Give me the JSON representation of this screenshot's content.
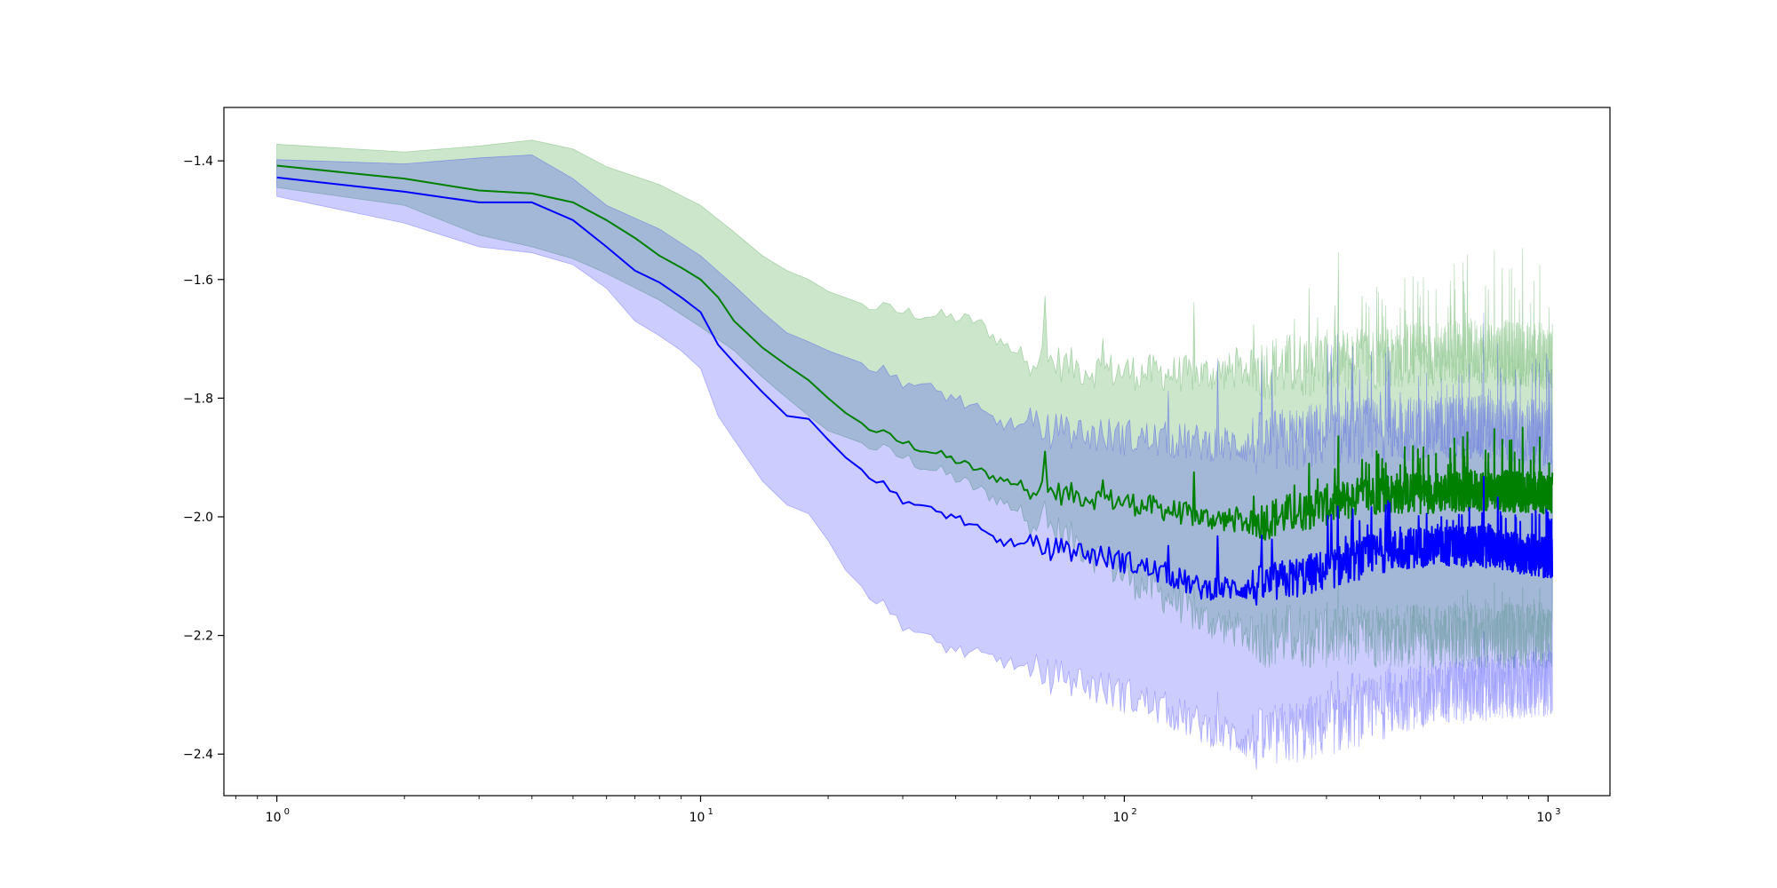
{
  "chart_data": {
    "type": "line",
    "title": "",
    "xlabel": "",
    "ylabel": "",
    "xscale": "log",
    "xlim": [
      0.75,
      1400
    ],
    "ylim": [
      -2.47,
      -1.31
    ],
    "grid": false,
    "legend": "none",
    "x_tick_labels": [
      "10",
      "10",
      "10",
      "10"
    ],
    "x_tick_exponents": [
      "0",
      "1",
      "2",
      "3"
    ],
    "x_tick_values": [
      1,
      10,
      100,
      1000
    ],
    "y_tick_labels": [
      "−1.4",
      "−1.6",
      "−1.8",
      "−2.0",
      "−2.2",
      "−2.4"
    ],
    "y_tick_values": [
      -1.4,
      -1.6,
      -1.8,
      -2.0,
      -2.2,
      -2.4
    ],
    "series": [
      {
        "color": "#008000",
        "band_color": "#008000",
        "band_alpha": 0.2,
        "keypoints": [
          [
            1,
            -1.408
          ],
          [
            2,
            -1.43
          ],
          [
            3,
            -1.45
          ],
          [
            4,
            -1.455
          ],
          [
            5,
            -1.47
          ],
          [
            6,
            -1.5
          ],
          [
            7,
            -1.53
          ],
          [
            8,
            -1.56
          ],
          [
            9,
            -1.58
          ],
          [
            10,
            -1.6
          ],
          [
            11,
            -1.63
          ],
          [
            12,
            -1.67
          ],
          [
            14,
            -1.715
          ],
          [
            16,
            -1.745
          ],
          [
            18,
            -1.77
          ],
          [
            20,
            -1.8
          ],
          [
            22,
            -1.825
          ],
          [
            25,
            -1.85
          ],
          [
            30,
            -1.875
          ],
          [
            35,
            -1.89
          ],
          [
            40,
            -1.905
          ],
          [
            50,
            -1.935
          ],
          [
            60,
            -1.95
          ],
          [
            70,
            -1.96
          ],
          [
            80,
            -1.965
          ],
          [
            100,
            -1.975
          ],
          [
            130,
            -1.99
          ],
          [
            150,
            -2.0
          ],
          [
            200,
            -2.01
          ],
          [
            300,
            -1.98
          ],
          [
            400,
            -1.96
          ],
          [
            500,
            -1.96
          ],
          [
            700,
            -1.955
          ],
          [
            1024,
            -1.96
          ]
        ],
        "upper_keypoints": [
          [
            1,
            -1.372
          ],
          [
            2,
            -1.385
          ],
          [
            3,
            -1.375
          ],
          [
            4,
            -1.365
          ],
          [
            5,
            -1.38
          ],
          [
            6,
            -1.41
          ],
          [
            8,
            -1.44
          ],
          [
            10,
            -1.475
          ],
          [
            12,
            -1.52
          ],
          [
            14,
            -1.56
          ],
          [
            16,
            -1.585
          ],
          [
            18,
            -1.6
          ],
          [
            20,
            -1.62
          ],
          [
            25,
            -1.645
          ],
          [
            30,
            -1.655
          ],
          [
            35,
            -1.66
          ],
          [
            40,
            -1.665
          ],
          [
            45,
            -1.67
          ],
          [
            50,
            -1.7
          ],
          [
            55,
            -1.72
          ],
          [
            60,
            -1.73
          ],
          [
            80,
            -1.75
          ],
          [
            100,
            -1.755
          ],
          [
            150,
            -1.76
          ],
          [
            200,
            -1.75
          ],
          [
            300,
            -1.74
          ],
          [
            400,
            -1.73
          ],
          [
            500,
            -1.725
          ],
          [
            700,
            -1.72
          ],
          [
            1024,
            -1.73
          ]
        ],
        "lower_keypoints": [
          [
            1,
            -1.445
          ],
          [
            2,
            -1.475
          ],
          [
            3,
            -1.525
          ],
          [
            4,
            -1.545
          ],
          [
            5,
            -1.565
          ],
          [
            6,
            -1.59
          ],
          [
            8,
            -1.635
          ],
          [
            10,
            -1.68
          ],
          [
            12,
            -1.72
          ],
          [
            14,
            -1.765
          ],
          [
            16,
            -1.8
          ],
          [
            18,
            -1.83
          ],
          [
            20,
            -1.855
          ],
          [
            25,
            -1.88
          ],
          [
            30,
            -1.9
          ],
          [
            40,
            -1.935
          ],
          [
            50,
            -1.97
          ],
          [
            60,
            -2.0
          ],
          [
            80,
            -2.05
          ],
          [
            100,
            -2.1
          ],
          [
            130,
            -2.14
          ],
          [
            150,
            -2.17
          ],
          [
            200,
            -2.2
          ],
          [
            300,
            -2.2
          ],
          [
            500,
            -2.2
          ],
          [
            700,
            -2.2
          ],
          [
            1024,
            -2.2
          ]
        ]
      },
      {
        "color": "#0000ff",
        "band_color": "#0000ff",
        "band_alpha": 0.2,
        "keypoints": [
          [
            1,
            -1.428
          ],
          [
            2,
            -1.452
          ],
          [
            3,
            -1.47
          ],
          [
            4,
            -1.47
          ],
          [
            5,
            -1.5
          ],
          [
            6,
            -1.545
          ],
          [
            7,
            -1.585
          ],
          [
            8,
            -1.605
          ],
          [
            9,
            -1.63
          ],
          [
            10,
            -1.655
          ],
          [
            11,
            -1.71
          ],
          [
            12,
            -1.74
          ],
          [
            14,
            -1.79
          ],
          [
            16,
            -1.83
          ],
          [
            18,
            -1.835
          ],
          [
            20,
            -1.87
          ],
          [
            22,
            -1.9
          ],
          [
            25,
            -1.93
          ],
          [
            30,
            -1.97
          ],
          [
            35,
            -1.99
          ],
          [
            40,
            -2.0
          ],
          [
            50,
            -2.04
          ],
          [
            60,
            -2.05
          ],
          [
            70,
            -2.055
          ],
          [
            80,
            -2.06
          ],
          [
            100,
            -2.075
          ],
          [
            130,
            -2.1
          ],
          [
            150,
            -2.12
          ],
          [
            200,
            -2.12
          ],
          [
            300,
            -2.09
          ],
          [
            400,
            -2.06
          ],
          [
            500,
            -2.05
          ],
          [
            700,
            -2.05
          ],
          [
            1024,
            -2.07
          ]
        ],
        "upper_keypoints": [
          [
            1,
            -1.398
          ],
          [
            2,
            -1.405
          ],
          [
            3,
            -1.395
          ],
          [
            4,
            -1.39
          ],
          [
            5,
            -1.43
          ],
          [
            6,
            -1.475
          ],
          [
            8,
            -1.515
          ],
          [
            10,
            -1.56
          ],
          [
            12,
            -1.61
          ],
          [
            14,
            -1.655
          ],
          [
            16,
            -1.69
          ],
          [
            18,
            -1.705
          ],
          [
            20,
            -1.72
          ],
          [
            25,
            -1.745
          ],
          [
            30,
            -1.77
          ],
          [
            40,
            -1.8
          ],
          [
            50,
            -1.84
          ],
          [
            60,
            -1.85
          ],
          [
            80,
            -1.86
          ],
          [
            100,
            -1.865
          ],
          [
            150,
            -1.875
          ],
          [
            200,
            -1.88
          ],
          [
            300,
            -1.86
          ],
          [
            500,
            -1.85
          ],
          [
            700,
            -1.85
          ],
          [
            1024,
            -1.86
          ]
        ],
        "lower_keypoints": [
          [
            1,
            -1.46
          ],
          [
            2,
            -1.505
          ],
          [
            3,
            -1.545
          ],
          [
            4,
            -1.555
          ],
          [
            5,
            -1.575
          ],
          [
            6,
            -1.615
          ],
          [
            7,
            -1.67
          ],
          [
            8,
            -1.695
          ],
          [
            9,
            -1.72
          ],
          [
            10,
            -1.75
          ],
          [
            11,
            -1.83
          ],
          [
            12,
            -1.87
          ],
          [
            14,
            -1.94
          ],
          [
            16,
            -1.98
          ],
          [
            18,
            -1.995
          ],
          [
            20,
            -2.04
          ],
          [
            22,
            -2.09
          ],
          [
            25,
            -2.13
          ],
          [
            30,
            -2.18
          ],
          [
            35,
            -2.21
          ],
          [
            40,
            -2.225
          ],
          [
            50,
            -2.24
          ],
          [
            60,
            -2.26
          ],
          [
            80,
            -2.28
          ],
          [
            100,
            -2.3
          ],
          [
            130,
            -2.33
          ],
          [
            150,
            -2.35
          ],
          [
            200,
            -2.38
          ],
          [
            300,
            -2.35
          ],
          [
            500,
            -2.3
          ],
          [
            700,
            -2.29
          ],
          [
            1024,
            -2.28
          ]
        ]
      }
    ]
  }
}
